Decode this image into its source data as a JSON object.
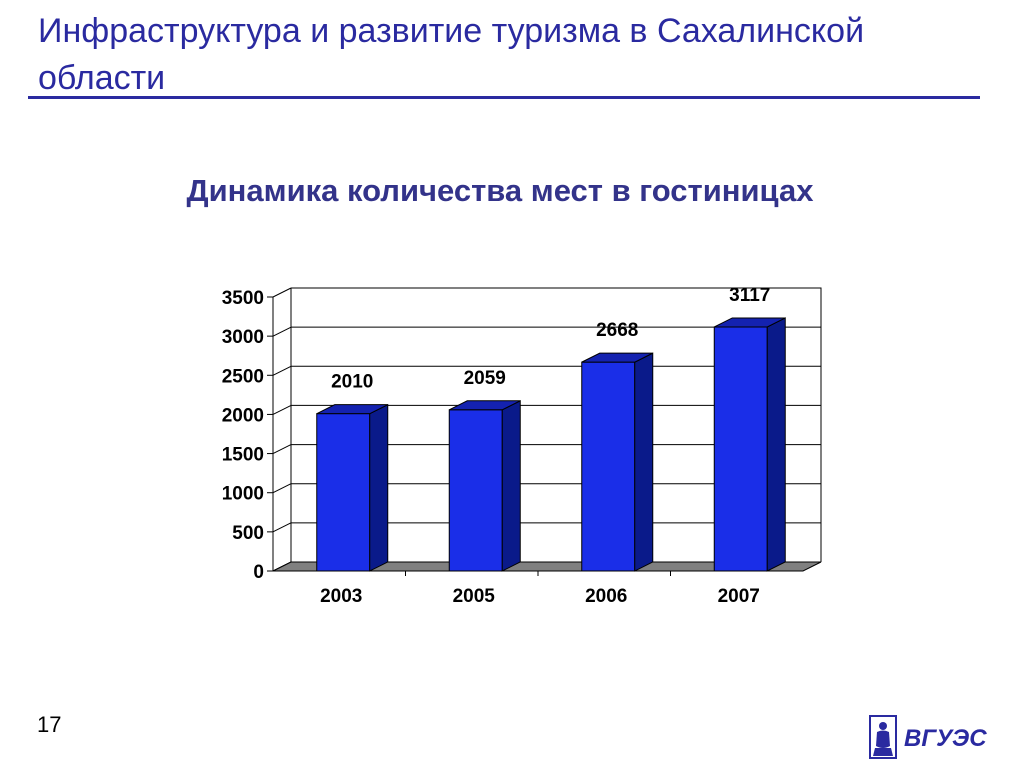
{
  "slide": {
    "title": "Инфраструктура и развитие туризма в Сахалинской области",
    "page_number": "17"
  },
  "logo": {
    "text": "ВГУЭС"
  },
  "colors": {
    "title": "#2a2aa0",
    "bar_front": "#1a2ee8",
    "bar_side": "#0a1a8a",
    "bar_top": "#1422b0",
    "floor": "#808080"
  },
  "chart_data": {
    "type": "bar",
    "title": "Динамика количества  мест в гостиницах",
    "categories": [
      "2003",
      "2005",
      "2006",
      "2007"
    ],
    "values": [
      2010,
      2059,
      2668,
      3117
    ],
    "data_labels": [
      "2010",
      "2059",
      "2668",
      "3117"
    ],
    "ylim": [
      0,
      3500
    ],
    "yticks": [
      0,
      500,
      1000,
      1500,
      2000,
      2500,
      3000,
      3500
    ],
    "ytick_labels": [
      "0",
      "500",
      "1000",
      "1500",
      "2000",
      "2500",
      "3000",
      "3500"
    ],
    "grid": true,
    "legend": "none",
    "three_d": true
  }
}
